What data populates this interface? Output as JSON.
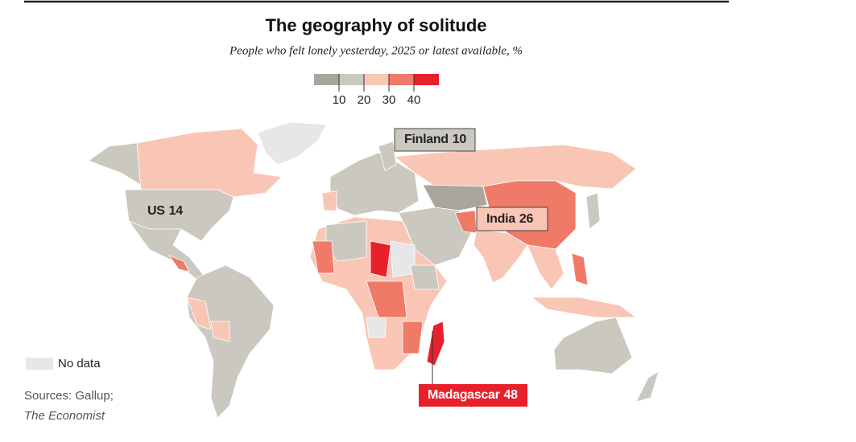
{
  "title": "The geography of solitude",
  "subtitle": "People who felt lonely yesterday, 2025 or latest available, %",
  "legend": {
    "ticks": [
      10,
      20,
      30,
      40
    ],
    "colors": [
      "#a9a69b",
      "#cac8bf",
      "#f9c6b6",
      "#f07a68",
      "#e8202a"
    ]
  },
  "no_data": {
    "label": "No data",
    "color": "#e7e7e7"
  },
  "callouts": [
    {
      "country": "Finland",
      "value": 10
    },
    {
      "country": "US",
      "value": 14
    },
    {
      "country": "India",
      "value": 26
    },
    {
      "country": "Madagascar",
      "value": 48
    }
  ],
  "source": {
    "line1": "Sources: Gallup;",
    "line2": "The Economist"
  }
}
